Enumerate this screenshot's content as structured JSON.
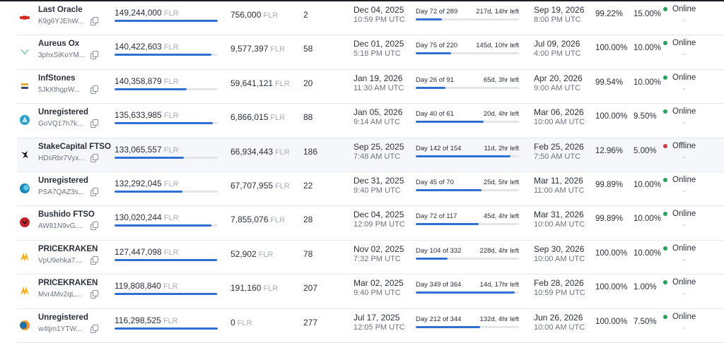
{
  "colors": {
    "online": "#22a55b",
    "offline": "#d63a3a",
    "bar": "#2f6fd4"
  },
  "providers": [
    {
      "logo": "last-oracle-logo",
      "name": "Last Oracle",
      "address": "K9g6YJEhW...",
      "stake": "149,244,000",
      "stake_unit": "FLR",
      "stake_pct": 100,
      "delegated": "756,000",
      "delegated_unit": "FLR",
      "delegators": "2",
      "start_date": "Dec 04, 2025",
      "start_time": "10:59 PM UTC",
      "day": "Day 72 of 289",
      "time_left": "217d, 14hr left",
      "progress": 25,
      "end_date": "Sep 19, 2026",
      "end_time": "8:00 PM UTC",
      "uptime": "99.22%",
      "fee": "15.00%",
      "status": "Online",
      "status_sub": "-"
    },
    {
      "logo": "aureus-ox-logo",
      "name": "Aureus Ox",
      "address": "3phxSiKoYM...",
      "stake": "140,422,603",
      "stake_unit": "FLR",
      "stake_pct": 94,
      "delegated": "9,577,397",
      "delegated_unit": "FLR",
      "delegators": "58",
      "start_date": "Dec 01, 2025",
      "start_time": "5:18 PM UTC",
      "day": "Day 75 of 220",
      "time_left": "145d, 10hr left",
      "progress": 34,
      "end_date": "Jul 09, 2026",
      "end_time": "4:00 PM UTC",
      "uptime": "100.00%",
      "fee": "10.00%",
      "status": "Online",
      "status_sub": "-"
    },
    {
      "logo": "infstones-logo",
      "name": "InfStones",
      "address": "5JkXthgpW...",
      "stake": "140,358,879",
      "stake_unit": "FLR",
      "stake_pct": 70,
      "delegated": "59,641,121",
      "delegated_unit": "FLR",
      "delegators": "20",
      "start_date": "Jan 19, 2026",
      "start_time": "11:30 AM UTC",
      "day": "Day 26 of 91",
      "time_left": "65d, 3hr left",
      "progress": 29,
      "end_date": "Apr 20, 2026",
      "end_time": "9:00 AM UTC",
      "uptime": "99.54%",
      "fee": "10.00%",
      "status": "Online",
      "status_sub": "-"
    },
    {
      "logo": "unregistered-logo-1",
      "name": "Unregistered",
      "address": "GoVQ17h7k...",
      "stake": "135,633,985",
      "stake_unit": "FLR",
      "stake_pct": 95,
      "delegated": "6,866,015",
      "delegated_unit": "FLR",
      "delegators": "88",
      "start_date": "Jan 05, 2026",
      "start_time": "9:14 AM UTC",
      "day": "Day 40 of 61",
      "time_left": "20d, 4hr left",
      "progress": 66,
      "end_date": "Mar 06, 2026",
      "end_time": "10:00 AM UTC",
      "uptime": "100.00%",
      "fee": "9.50%",
      "status": "Online",
      "status_sub": "-"
    },
    {
      "logo": "stakecapital-logo",
      "name": "StakeCapital FTSO",
      "address": "HDsRbr7Vyx...",
      "stake": "133,065,557",
      "stake_unit": "FLR",
      "stake_pct": 67,
      "delegated": "66,934,443",
      "delegated_unit": "FLR",
      "delegators": "186",
      "start_date": "Sep 25, 2025",
      "start_time": "7:48 AM UTC",
      "day": "Day 142 of 154",
      "time_left": "11d, 2hr left",
      "progress": 92,
      "end_date": "Feb 25, 2026",
      "end_time": "7:50 AM UTC",
      "uptime": "12.96%",
      "fee": "5.00%",
      "status": "Offline",
      "status_sub": "-"
    },
    {
      "logo": "unregistered-logo-2",
      "name": "Unregistered",
      "address": "PSA7QAZ3s...",
      "stake": "132,292,045",
      "stake_unit": "FLR",
      "stake_pct": 66,
      "delegated": "67,707,955",
      "delegated_unit": "FLR",
      "delegators": "22",
      "start_date": "Dec 31, 2025",
      "start_time": "9:40 PM UTC",
      "day": "Day 45 of 70",
      "time_left": "25d, 5hr left",
      "progress": 64,
      "end_date": "Mar 11, 2026",
      "end_time": "11:00 AM UTC",
      "uptime": "99.89%",
      "fee": "10.00%",
      "status": "Online",
      "status_sub": "-"
    },
    {
      "logo": "bushido-logo",
      "name": "Bushido FTSO",
      "address": "AW81N9vG...",
      "stake": "130,020,244",
      "stake_unit": "FLR",
      "stake_pct": 94,
      "delegated": "7,855,076",
      "delegated_unit": "FLR",
      "delegators": "28",
      "start_date": "Dec 04, 2025",
      "start_time": "12:09 PM UTC",
      "day": "Day 72 of 117",
      "time_left": "45d, 4hr left",
      "progress": 61,
      "end_date": "Mar 31, 2026",
      "end_time": "10:00 AM UTC",
      "uptime": "99.89%",
      "fee": "10.00%",
      "status": "Online",
      "status_sub": "-"
    },
    {
      "logo": "pricekraken-logo-1",
      "name": "PRICEKRAKEN",
      "address": "VpU9ehka7...",
      "stake": "127,447,098",
      "stake_unit": "FLR",
      "stake_pct": 99,
      "delegated": "52,902",
      "delegated_unit": "FLR",
      "delegators": "78",
      "start_date": "Nov 02, 2025",
      "start_time": "7:32 PM UTC",
      "day": "Day 104 of 332",
      "time_left": "228d, 4hr left",
      "progress": 31,
      "end_date": "Sep 30, 2026",
      "end_time": "10:00 AM UTC",
      "uptime": "100.00%",
      "fee": "10.00%",
      "status": "Online",
      "status_sub": "-"
    },
    {
      "logo": "pricekraken-logo-2",
      "name": "PRICEKRAKEN",
      "address": "Mvr4Mv2qL...",
      "stake": "119,808,840",
      "stake_unit": "FLR",
      "stake_pct": 99,
      "delegated": "191,160",
      "delegated_unit": "FLR",
      "delegators": "207",
      "start_date": "Mar 02, 2025",
      "start_time": "9:40 PM UTC",
      "day": "Day 349 of 364",
      "time_left": "14d, 17hr left",
      "progress": 96,
      "end_date": "Feb 28, 2026",
      "end_time": "10:59 PM UTC",
      "uptime": "100.00%",
      "fee": "1.00%",
      "status": "Online",
      "status_sub": "-"
    },
    {
      "logo": "unregistered-logo-3",
      "name": "Unregistered",
      "address": "w4tjm1YTW...",
      "stake": "116,298,525",
      "stake_unit": "FLR",
      "stake_pct": 100,
      "delegated": "0",
      "delegated_unit": "FLR",
      "delegators": "277",
      "start_date": "Jul 17, 2025",
      "start_time": "12:05 PM UTC",
      "day": "Day 212 of 344",
      "time_left": "132d, 4hr left",
      "progress": 62,
      "end_date": "Jun 26, 2026",
      "end_time": "10:00 AM UTC",
      "uptime": "100.00%",
      "fee": "7.50%",
      "status": "Online",
      "status_sub": "-"
    }
  ]
}
